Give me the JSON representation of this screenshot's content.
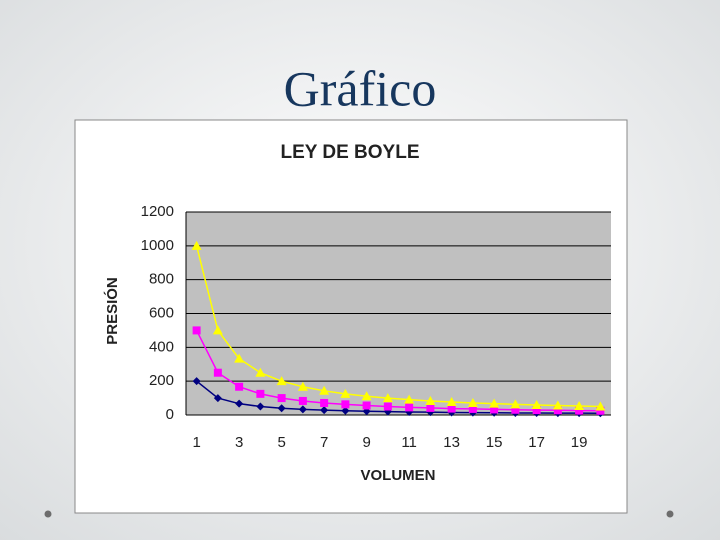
{
  "slide_title": "Gráfico",
  "chart_data": {
    "type": "line",
    "title": "LEY DE BOYLE",
    "x_label": "VOLUMEN",
    "y_label": "PRESIÓN",
    "categories": [
      1,
      null,
      3,
      null,
      5,
      null,
      7,
      null,
      9,
      null,
      11,
      null,
      13,
      null,
      15,
      null,
      17,
      null,
      19,
      null
    ],
    "series": [
      {
        "color": "#000080",
        "marker": "diamond",
        "values": [
          200,
          100,
          67,
          50,
          40,
          33,
          29,
          25,
          22,
          20,
          18,
          17,
          15,
          14,
          13,
          12,
          12,
          11,
          11,
          10
        ]
      },
      {
        "color": "#ff00ff",
        "marker": "square",
        "values": [
          500,
          250,
          167,
          125,
          100,
          83,
          71,
          63,
          56,
          50,
          45,
          42,
          38,
          36,
          33,
          31,
          29,
          28,
          26,
          25
        ]
      },
      {
        "color": "#ffff00",
        "marker": "triangle",
        "values": [
          1000,
          500,
          333,
          250,
          200,
          167,
          143,
          125,
          111,
          100,
          91,
          83,
          77,
          71,
          67,
          63,
          59,
          56,
          53,
          50
        ]
      }
    ],
    "ylim": [
      0,
      1200
    ],
    "yticks": [
      0,
      200,
      400,
      600,
      800,
      1000,
      1200
    ],
    "grid": true
  }
}
